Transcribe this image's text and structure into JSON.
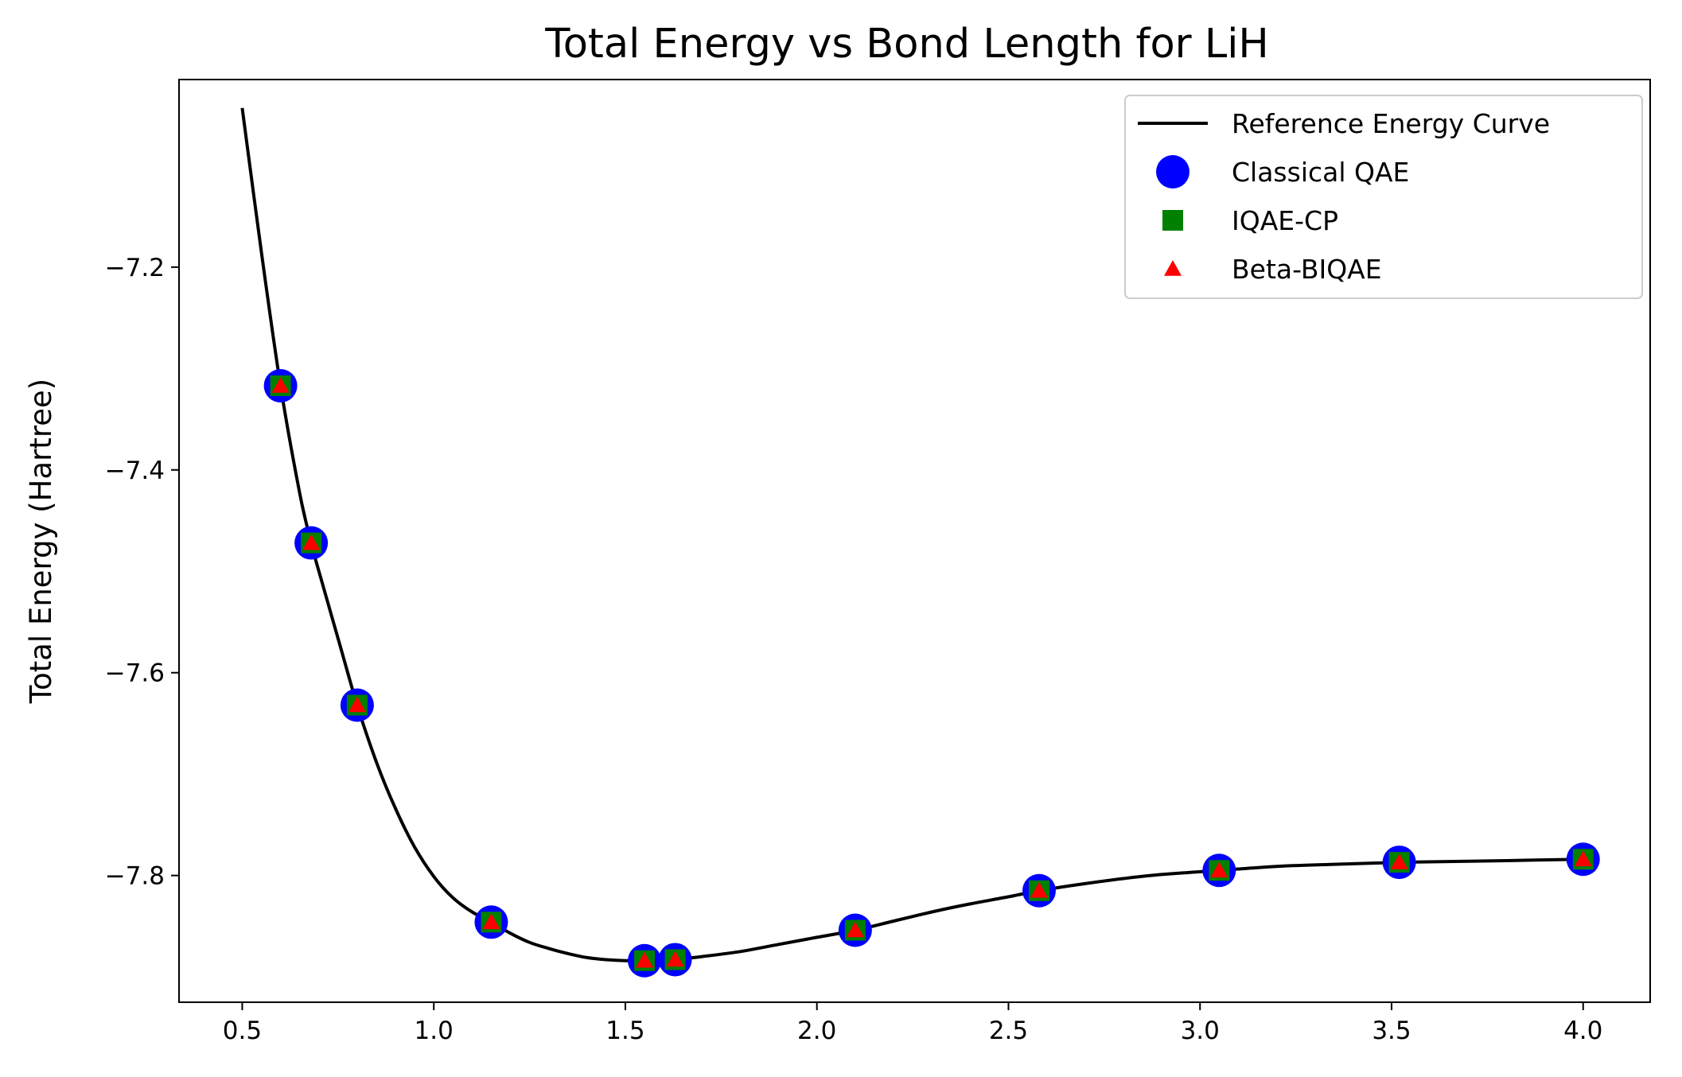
{
  "chart_data": {
    "type": "line",
    "title": "Total Energy vs Bond Length for LiH",
    "xlabel": "",
    "ylabel": "Total Energy (Hartree)",
    "xlim": [
      0.335,
      4.175
    ],
    "ylim": [
      -7.925,
      -7.015
    ],
    "xticks": [
      0.5,
      1.0,
      1.5,
      2.0,
      2.5,
      3.0,
      3.5,
      4.0
    ],
    "xtick_labels": [
      "0.5",
      "1.0",
      "1.5",
      "2.0",
      "2.5",
      "3.0",
      "3.5",
      "4.0"
    ],
    "yticks": [
      -7.2,
      -7.4,
      -7.6,
      -7.8
    ],
    "ytick_labels": [
      "−7.2",
      "−7.4",
      "−7.6",
      "−7.8"
    ],
    "grid": false,
    "legend_position": "top-right",
    "series": [
      {
        "name": "Reference Energy Curve",
        "kind": "line",
        "color": "#000000",
        "x": [
          0.5,
          0.55,
          0.6,
          0.65,
          0.68,
          0.7,
          0.75,
          0.8,
          0.85,
          0.9,
          0.95,
          1.0,
          1.05,
          1.1,
          1.15,
          1.2,
          1.25,
          1.3,
          1.35,
          1.4,
          1.45,
          1.5,
          1.55,
          1.6,
          1.63,
          1.7,
          1.8,
          1.9,
          2.0,
          2.1,
          2.2,
          2.3,
          2.4,
          2.5,
          2.58,
          2.7,
          2.8,
          2.9,
          3.05,
          3.2,
          3.35,
          3.52,
          3.7,
          3.85,
          4.0
        ],
        "y": [
          -7.043,
          -7.185,
          -7.317,
          -7.423,
          -7.472,
          -7.5,
          -7.566,
          -7.632,
          -7.688,
          -7.734,
          -7.772,
          -7.801,
          -7.822,
          -7.836,
          -7.846,
          -7.857,
          -7.866,
          -7.872,
          -7.877,
          -7.881,
          -7.883,
          -7.884,
          -7.884,
          -7.884,
          -7.883,
          -7.88,
          -7.875,
          -7.868,
          -7.861,
          -7.854,
          -7.845,
          -7.836,
          -7.828,
          -7.821,
          -7.815,
          -7.808,
          -7.803,
          -7.799,
          -7.795,
          -7.791,
          -7.789,
          -7.787,
          -7.786,
          -7.785,
          -7.784
        ]
      },
      {
        "name": "Classical QAE",
        "kind": "marker",
        "marker": "circle",
        "color": "#0000ff",
        "x": [
          0.6,
          0.68,
          0.8,
          1.15,
          1.55,
          1.63,
          2.1,
          2.58,
          3.05,
          3.52,
          4.0
        ],
        "y": [
          -7.317,
          -7.472,
          -7.632,
          -7.846,
          -7.884,
          -7.883,
          -7.854,
          -7.815,
          -7.795,
          -7.787,
          -7.784
        ]
      },
      {
        "name": "IQAE-CP",
        "kind": "marker",
        "marker": "square",
        "color": "#008000",
        "x": [
          0.6,
          0.68,
          0.8,
          1.15,
          1.55,
          1.63,
          2.1,
          2.58,
          3.05,
          3.52,
          4.0
        ],
        "y": [
          -7.317,
          -7.472,
          -7.632,
          -7.846,
          -7.884,
          -7.883,
          -7.854,
          -7.815,
          -7.795,
          -7.787,
          -7.784
        ]
      },
      {
        "name": "Beta-BIQAE",
        "kind": "marker",
        "marker": "triangle",
        "color": "#ff0000",
        "x": [
          0.6,
          0.68,
          0.8,
          1.15,
          1.55,
          1.63,
          2.1,
          2.58,
          3.05,
          3.52,
          4.0
        ],
        "y": [
          -7.317,
          -7.472,
          -7.632,
          -7.846,
          -7.884,
          -7.883,
          -7.854,
          -7.815,
          -7.795,
          -7.787,
          -7.784
        ]
      }
    ]
  }
}
